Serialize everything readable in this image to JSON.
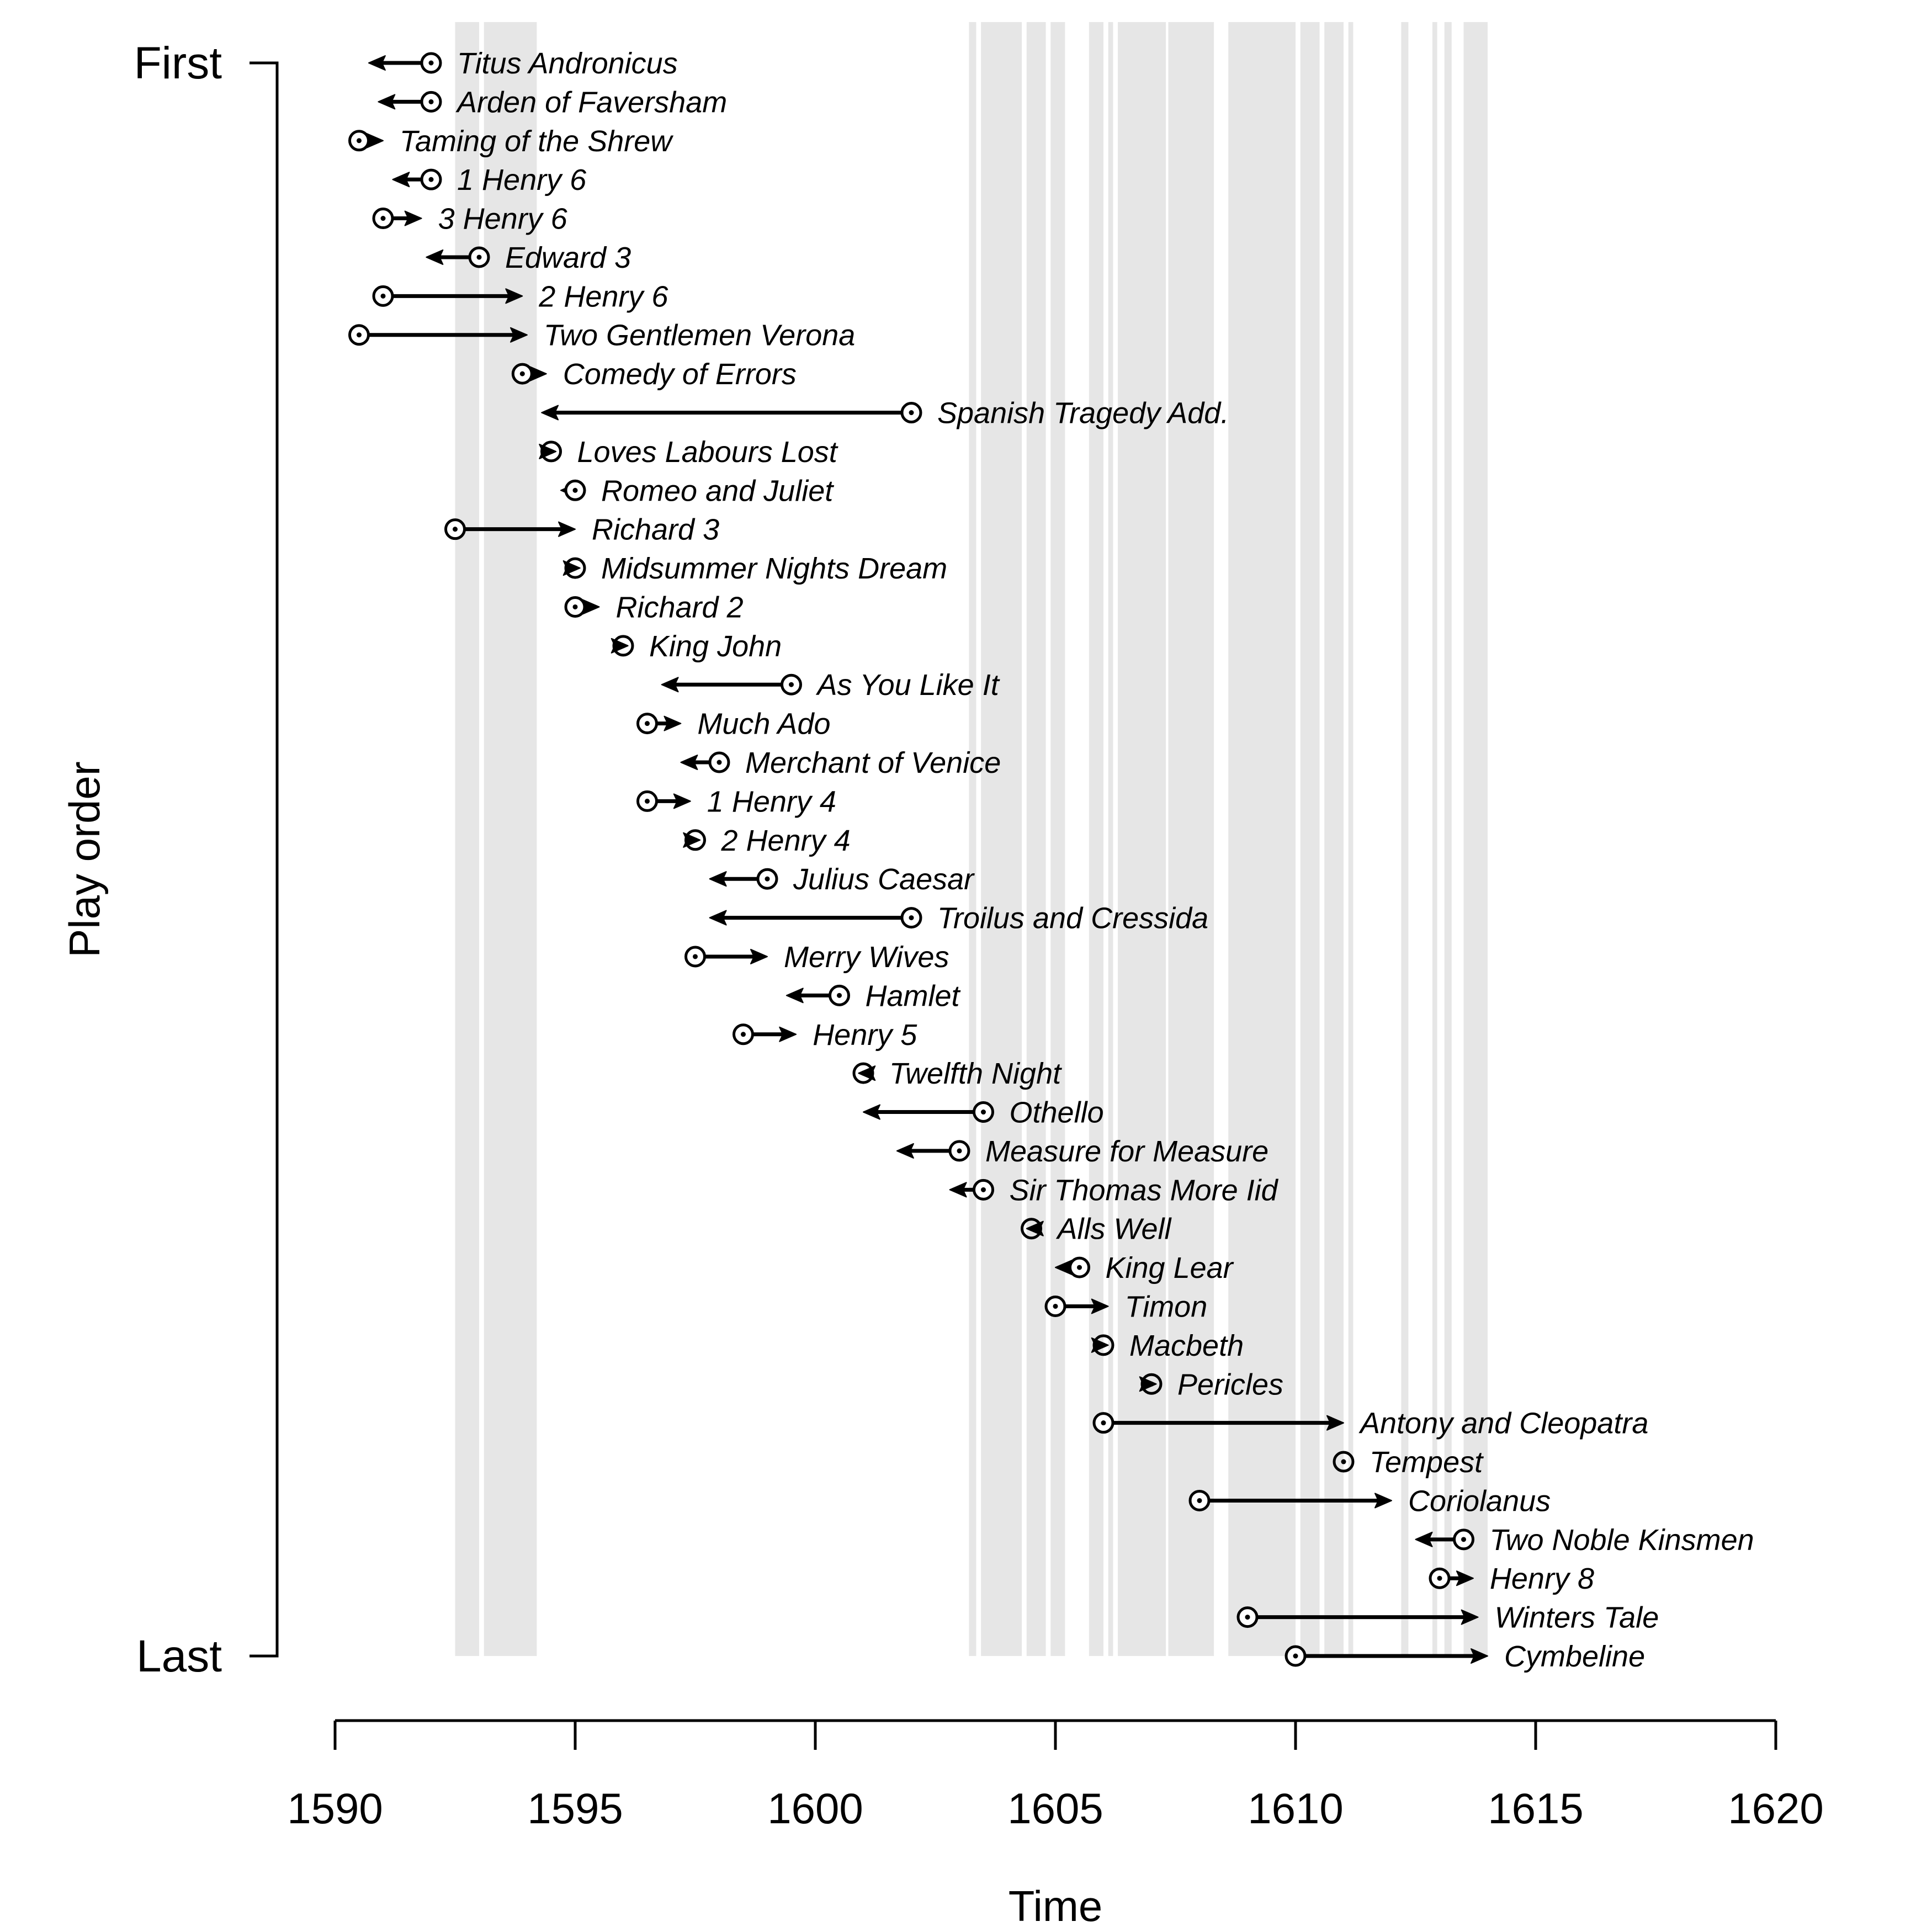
{
  "chart_data": {
    "type": "scatter",
    "xlabel": "Time",
    "ylabel": "Play order",
    "y_top_label": "First",
    "y_bottom_label": "Last",
    "xlim": [
      1590,
      1620
    ],
    "xticks": [
      1590,
      1595,
      1600,
      1605,
      1610,
      1615,
      1620
    ],
    "grid": false,
    "shaded_periods": [
      [
        1592.5,
        1593.0
      ],
      [
        1593.1,
        1594.2
      ],
      [
        1603.2,
        1603.35
      ],
      [
        1603.45,
        1604.3
      ],
      [
        1604.4,
        1604.8
      ],
      [
        1604.9,
        1605.2
      ],
      [
        1605.7,
        1606.0
      ],
      [
        1606.1,
        1606.2
      ],
      [
        1606.3,
        1607.3
      ],
      [
        1607.35,
        1608.3
      ],
      [
        1608.6,
        1610.0
      ],
      [
        1610.1,
        1610.5
      ],
      [
        1610.6,
        1611.0
      ],
      [
        1611.1,
        1611.2
      ],
      [
        1612.2,
        1612.35
      ],
      [
        1612.85,
        1612.95
      ],
      [
        1613.1,
        1613.25
      ],
      [
        1613.5,
        1614.0
      ]
    ],
    "series": [
      {
        "values": [
          {
            "play": "Titus Andronicus",
            "from": 1592.0,
            "to": 1590.7
          },
          {
            "play": "Arden of Faversham",
            "from": 1592.0,
            "to": 1590.9
          },
          {
            "play": "Taming of the Shrew",
            "from": 1590.5,
            "to": 1591.0
          },
          {
            "play": "1 Henry 6",
            "from": 1592.0,
            "to": 1591.2
          },
          {
            "play": "3 Henry 6",
            "from": 1591.0,
            "to": 1591.8
          },
          {
            "play": "Edward 3",
            "from": 1593.0,
            "to": 1591.9
          },
          {
            "play": "2 Henry 6",
            "from": 1591.0,
            "to": 1593.9
          },
          {
            "play": "Two Gentlemen Verona",
            "from": 1590.5,
            "to": 1594.0
          },
          {
            "play": "Comedy of Errors",
            "from": 1593.9,
            "to": 1594.4
          },
          {
            "play": "Spanish Tragedy Add.",
            "from": 1602.0,
            "to": 1594.3
          },
          {
            "play": "Loves Labours Lost",
            "from": 1594.5,
            "to": 1594.6
          },
          {
            "play": "Romeo and Juliet",
            "from": 1595.0,
            "to": 1594.7
          },
          {
            "play": "Richard 3",
            "from": 1592.5,
            "to": 1595.0
          },
          {
            "play": "Midsummer Nights Dream",
            "from": 1595.0,
            "to": 1595.1
          },
          {
            "play": "Richard 2",
            "from": 1595.0,
            "to": 1595.5
          },
          {
            "play": "King John",
            "from": 1596.0,
            "to": 1596.1
          },
          {
            "play": "As You Like It",
            "from": 1599.5,
            "to": 1596.8
          },
          {
            "play": "Much Ado",
            "from": 1596.5,
            "to": 1597.2
          },
          {
            "play": "Merchant of Venice",
            "from": 1598.0,
            "to": 1597.2
          },
          {
            "play": "1 Henry 4",
            "from": 1596.5,
            "to": 1597.4
          },
          {
            "play": "2 Henry 4",
            "from": 1597.5,
            "to": 1597.6
          },
          {
            "play": "Julius Caesar",
            "from": 1599.0,
            "to": 1597.8
          },
          {
            "play": "Troilus and Cressida",
            "from": 1602.0,
            "to": 1597.8
          },
          {
            "play": "Merry Wives",
            "from": 1597.5,
            "to": 1599.0
          },
          {
            "play": "Hamlet",
            "from": 1600.5,
            "to": 1599.4
          },
          {
            "play": "Henry 5",
            "from": 1598.5,
            "to": 1599.6
          },
          {
            "play": "Twelfth Night",
            "from": 1601.0,
            "to": 1600.9
          },
          {
            "play": "Othello",
            "from": 1603.5,
            "to": 1601.0
          },
          {
            "play": "Measure for Measure",
            "from": 1603.0,
            "to": 1601.7
          },
          {
            "play": "Sir Thomas More Iid",
            "from": 1603.5,
            "to": 1602.8
          },
          {
            "play": "Alls Well",
            "from": 1604.5,
            "to": 1604.4
          },
          {
            "play": "King Lear",
            "from": 1605.5,
            "to": 1605.0
          },
          {
            "play": "Timon",
            "from": 1605.0,
            "to": 1606.1
          },
          {
            "play": "Macbeth",
            "from": 1606.0,
            "to": 1606.1
          },
          {
            "play": "Pericles",
            "from": 1607.0,
            "to": 1607.1
          },
          {
            "play": "Antony and Cleopatra",
            "from": 1606.0,
            "to": 1611.0
          },
          {
            "play": "Tempest",
            "from": 1611.0,
            "to": 1611.0
          },
          {
            "play": "Coriolanus",
            "from": 1608.0,
            "to": 1612.0
          },
          {
            "play": "Two Noble Kinsmen",
            "from": 1613.5,
            "to": 1612.5
          },
          {
            "play": "Henry 8",
            "from": 1613.0,
            "to": 1613.7
          },
          {
            "play": "Winters Tale",
            "from": 1609.0,
            "to": 1613.8
          },
          {
            "play": "Cymbeline",
            "from": 1610.0,
            "to": 1614.0
          }
        ]
      }
    ]
  }
}
